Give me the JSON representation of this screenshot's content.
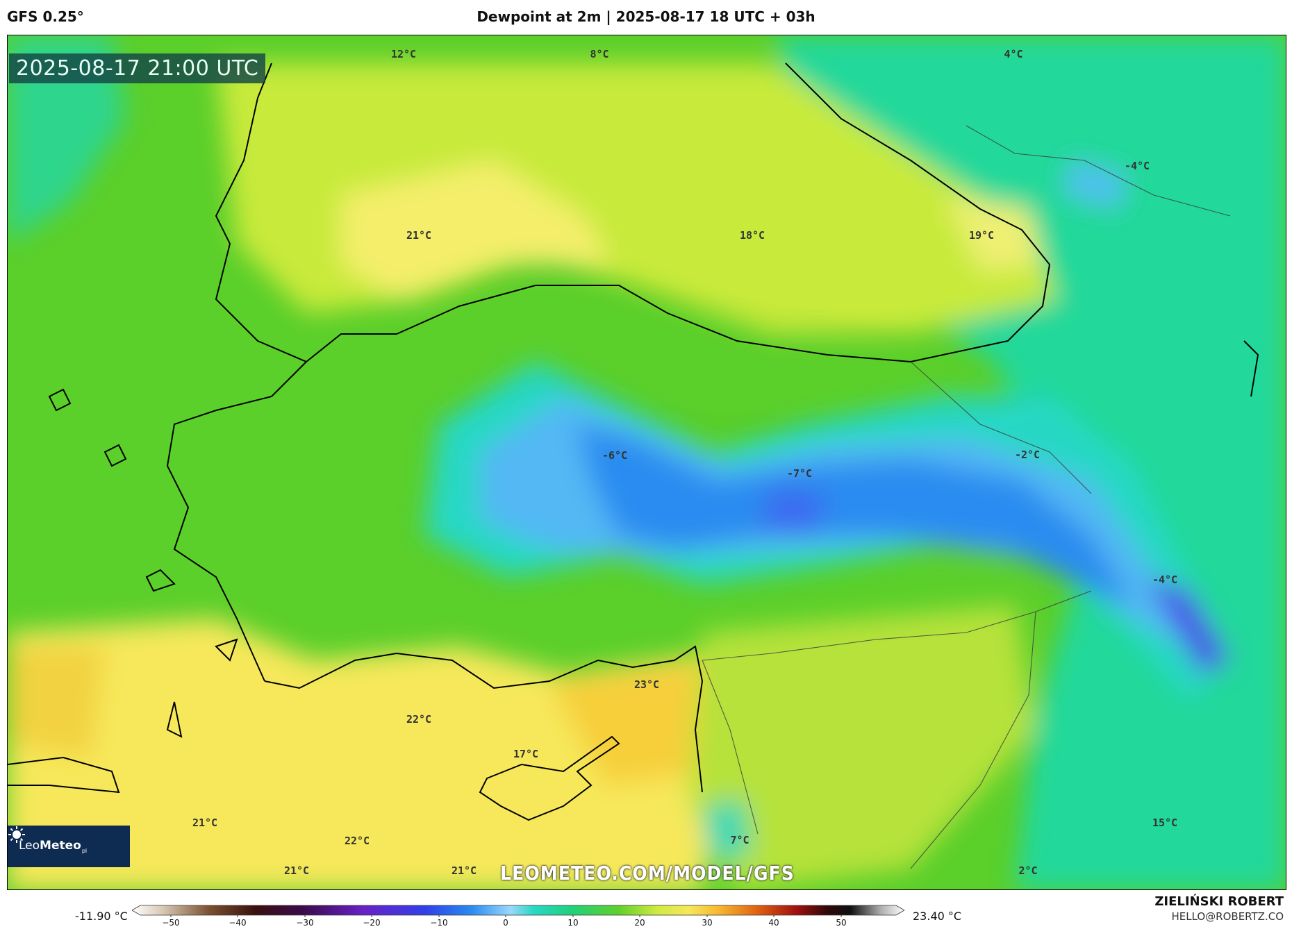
{
  "header": {
    "model": "GFS 0.25°",
    "title": "Dewpoint at 2m | 2025-08-17 18 UTC + 03h"
  },
  "map": {
    "timestamp": "2025-08-17 21:00 UTC",
    "watermark": "LEOMETEO.COM/MODEL/GFS",
    "labels": [
      {
        "text": "12°C"
      },
      {
        "text": "8°C"
      },
      {
        "text": "4°C"
      },
      {
        "text": "-4°C"
      },
      {
        "text": "21°C"
      },
      {
        "text": "18°C"
      },
      {
        "text": "19°C"
      },
      {
        "text": "-6°C"
      },
      {
        "text": "-7°C"
      },
      {
        "text": "-2°C"
      },
      {
        "text": "-4°C"
      },
      {
        "text": "23°C"
      },
      {
        "text": "22°C"
      },
      {
        "text": "17°C"
      },
      {
        "text": "21°C"
      },
      {
        "text": "22°C"
      },
      {
        "text": "21°C"
      },
      {
        "text": "21°C"
      },
      {
        "text": "7°C"
      },
      {
        "text": "15°C"
      },
      {
        "text": "2°C"
      }
    ]
  },
  "logo": {
    "brand_light": "Leo",
    "brand_bold": "Meteo",
    "suffix": "pl"
  },
  "colorbar": {
    "min_label": "-11.90 °C",
    "max_label": "23.40 °C",
    "ticks": [
      "−50",
      "−40",
      "−30",
      "−20",
      "−10",
      "0",
      "10",
      "20",
      "30",
      "40",
      "50"
    ]
  },
  "credit": {
    "author": "ZIELIŃSKI ROBERT",
    "email": "HELLO@ROBERTZ.CO"
  }
}
